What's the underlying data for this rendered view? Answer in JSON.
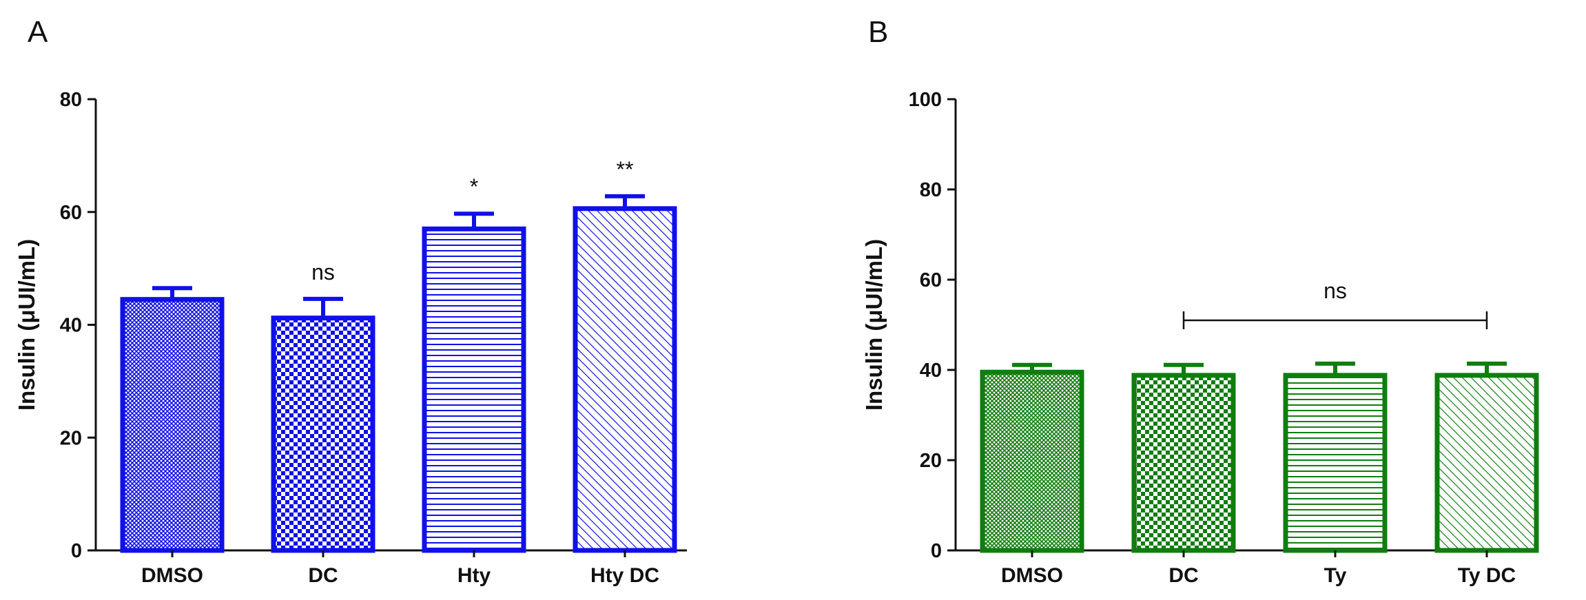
{
  "panels": [
    {
      "label": "A",
      "chart_data": {
        "type": "bar",
        "categories": [
          "DMSO",
          "DC",
          "Hty",
          "Hty DC"
        ],
        "values": [
          44.5,
          41.2,
          57.0,
          60.6
        ],
        "errors": [
          2.0,
          3.4,
          2.7,
          2.2
        ],
        "annotations": [
          "",
          "ns",
          "*",
          "**"
        ],
        "patterns": [
          "crosshatch",
          "checker",
          "horizontal",
          "diagonal"
        ],
        "ylabel": "Insulin (μUI/mL)",
        "ylim": [
          0,
          80
        ],
        "yticks": [
          0,
          20,
          40,
          60,
          80
        ],
        "color": "#1010e8",
        "grid": false
      }
    },
    {
      "label": "B",
      "chart_data": {
        "type": "bar",
        "categories": [
          "DMSO",
          "DC",
          "Ty",
          "Ty DC"
        ],
        "values": [
          39.5,
          38.8,
          38.8,
          38.8
        ],
        "errors": [
          1.6,
          2.3,
          2.6,
          2.6
        ],
        "annotations": [
          "",
          "",
          "",
          ""
        ],
        "bracket": {
          "from": 1,
          "to": 3,
          "label": "ns",
          "y": 51
        },
        "patterns": [
          "crosshatch",
          "checker",
          "horizontal",
          "diagonal"
        ],
        "ylabel": "Insulin (μUI/mL)",
        "ylim": [
          0,
          100
        ],
        "yticks": [
          0,
          20,
          40,
          60,
          80,
          100
        ],
        "color": "#0f7d0f",
        "grid": false
      }
    }
  ]
}
